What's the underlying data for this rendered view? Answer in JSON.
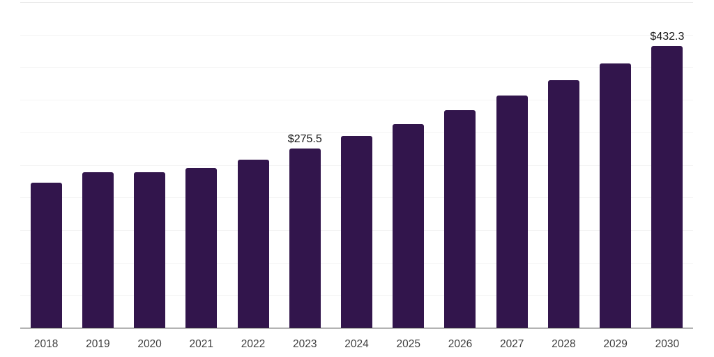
{
  "chart_data": {
    "type": "bar",
    "title": "",
    "xlabel": "",
    "ylabel": "",
    "categories": [
      "2018",
      "2019",
      "2020",
      "2021",
      "2022",
      "2023",
      "2024",
      "2025",
      "2026",
      "2027",
      "2028",
      "2029",
      "2030"
    ],
    "values": [
      223,
      239,
      239,
      245,
      258.5,
      275.5,
      294,
      313,
      334,
      356.5,
      380,
      405.5,
      432.3
    ],
    "data_labels": [
      "",
      "",
      "",
      "",
      "",
      "$275.5",
      "",
      "",
      "",
      "",
      "",
      "",
      "$432.3"
    ],
    "ylim": [
      0,
      500
    ],
    "gridline_step": 50,
    "grid": true,
    "legend_position": "none",
    "colors": {
      "bar": "#32154c",
      "gridline": "#f3f3f3",
      "top_gridline": "#e9e9e9",
      "axis_line": "#333333",
      "data_label_text": "#141414",
      "tick_label_text": "#3f3f3f",
      "background": "#ffffff"
    }
  }
}
